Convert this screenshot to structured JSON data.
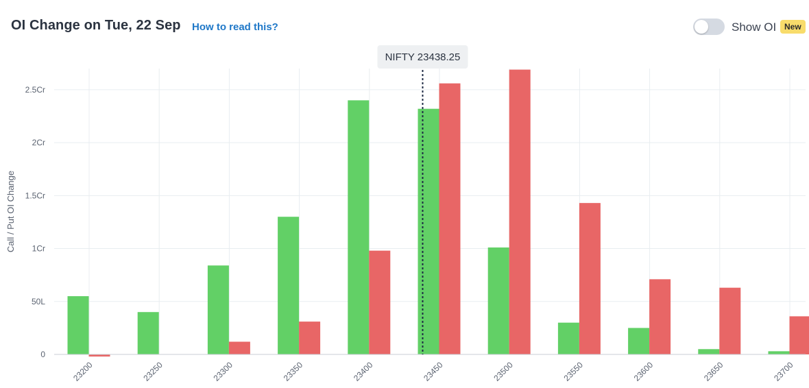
{
  "header": {
    "title": "OI Change on Tue, 22 Sep",
    "help_link": "How to read this?",
    "toggle_label": "Show OI",
    "badge": "New",
    "toggle_on": false
  },
  "colors": {
    "call": "#62d066",
    "put": "#e86666",
    "spot_line": "#1e2a44",
    "grid": "#e8edf0",
    "axis_text": "#5a6270",
    "tooltip_bg": "#eef0f2",
    "badge_bg": "#f8dc6b",
    "link": "#1f78c8"
  },
  "chart_data": {
    "type": "bar",
    "ylabel": "Call / Put OI Change",
    "categories": [
      "23200",
      "23250",
      "23300",
      "23350",
      "23400",
      "23450",
      "23500",
      "23550",
      "23600",
      "23650",
      "23700"
    ],
    "series": [
      {
        "color": "#62d066",
        "values": [
          5500000,
          4000000,
          8400000,
          13000000,
          24000000,
          23200000,
          10100000,
          3000000,
          2500000,
          500000,
          300000
        ]
      },
      {
        "color": "#e86666",
        "values": [
          -200000,
          0,
          1200000,
          3100000,
          9800000,
          25600000,
          26900000,
          14300000,
          7100000,
          6300000,
          3600000
        ]
      }
    ],
    "yticks": [
      0,
      5000000,
      10000000,
      15000000,
      20000000,
      25000000
    ],
    "ytick_labels": [
      "0",
      "50L",
      "1Cr",
      "1.5Cr",
      "2Cr",
      "2.5Cr"
    ],
    "ylim": [
      0,
      27000000
    ],
    "spot": {
      "label": "NIFTY 23438.25",
      "value": 23438.25
    },
    "grid": true
  }
}
